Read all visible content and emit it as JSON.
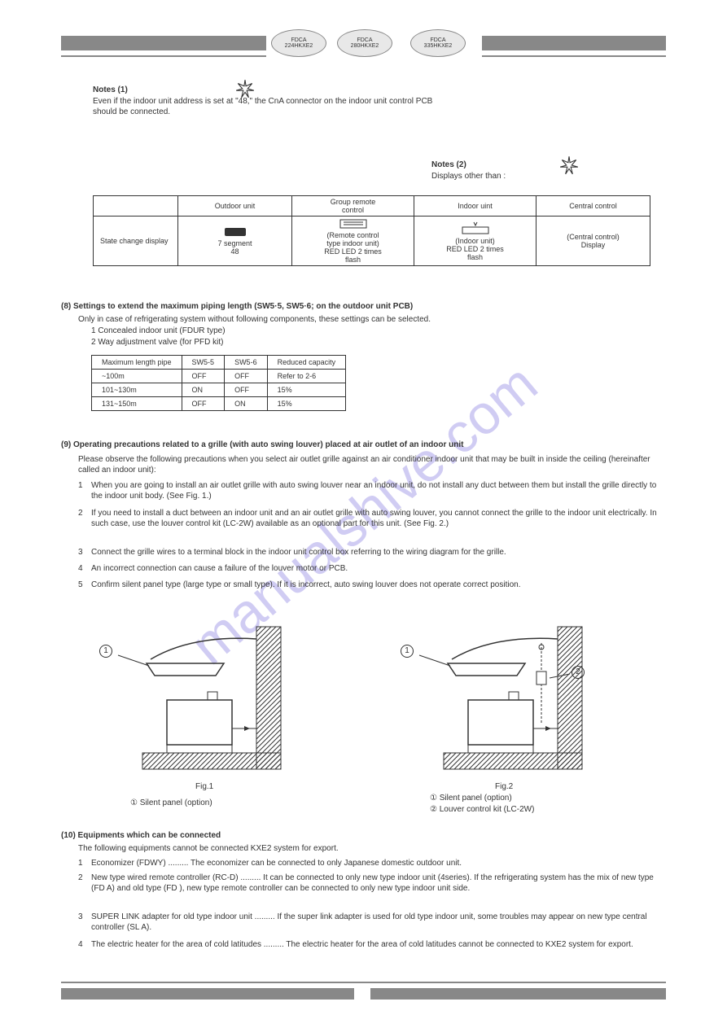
{
  "header": {
    "models": {
      "model1": "FDCA\n224HKXE2",
      "model2": "FDCA\n280HKXE2",
      "model3": "FDCA\n335HKXE2"
    }
  },
  "watermark": "manualshive.com",
  "notes": {
    "note1_title": "Notes (1)",
    "note1_body": "Even if the indoor unit address is set at \"48,\" the CnA connector on the indoor unit control PCB should be connected.",
    "notes2_title": "Notes (2)",
    "notes2_body": "Displays other than :"
  },
  "deviceTable": {
    "col_outdoor": "Outdoor unit",
    "col_group": "Group remote\ncontrol",
    "col_indoor": "Indoor uint",
    "col_central": "Central control",
    "row_label": "State change display",
    "row_48": "7 segment\n48",
    "row_remote": "(Remote control\ntype indoor unit)\nRED LED 2 times\nflash",
    "row_indoor": "(Indoor unit)\nRED LED 2 times\nflash",
    "row_central": "(Central control)\nDisplay"
  },
  "settings": {
    "title": "(8) Settings to extend the maximum piping length (SW5·5, SW5·6; on the outdoor unit PCB)",
    "intro": "Only in case of refrigerating system without following components, these settings can be selected.",
    "item1": "1 Concealed indoor unit (FDUR type)",
    "item2": "2 Way adjustment valve (for PFD kit)",
    "table_header_length": "Maximum length pipe",
    "table_reduced": "Reduced capacity",
    "row1_len": "~100m",
    "row1_sw55": "OFF",
    "row1_sw56": "OFF",
    "row1_cap": "Refer to 2-6",
    "row2_len": "101~130m",
    "row2_sw55": "ON",
    "row2_sw56": "OFF",
    "row2_cap": "15%",
    "row3_len": "131~150m",
    "row3_sw55": "OFF",
    "row3_sw56": "ON",
    "row3_cap": "15%"
  },
  "precautions": {
    "title": "(9) Operating precautions related to a grille (with auto swing louver) placed at air outlet of an indoor unit",
    "intro": "Please observe the following precautions when you select air outlet grille against an air conditioner indoor unit that may be built in inside the ceiling (hereinafter called an indoor unit):",
    "item1_label": "1",
    "item1_text": "When you are going to install an air outlet grille with auto swing louver near an indoor unit, do not install any duct between them but install the grille directly to the indoor unit body. (See Fig. 1.)",
    "item2_label": "2",
    "item2_text": "If you need to install a duct between an indoor unit and an air outlet grille with auto swing louver, you cannot connect the grille to the indoor unit electrically. In such case, use the louver control kit (LC-2W) available as an optional part for this unit. (See Fig. 2.)",
    "item3_label": "3",
    "item3_text": "Connect the grille wires to a terminal block in the indoor unit control box referring to the wiring diagram for the grille.",
    "item4_label": "4",
    "item4_text": "An incorrect connection can cause a failure of the louver motor or PCB.",
    "item5_label": "5",
    "item5_text": "Confirm silent panel type (large type or small type). If it is incorrect, auto swing louver does not operate correct position.",
    "fig1_caption": "Fig.1",
    "fig2_caption": "Fig.2",
    "fig_label1": "① Silent panel (option)",
    "fig_label2": "② Louver control kit (LC-2W)"
  },
  "equipment": {
    "title": "(10) Equipments which can be connected",
    "intro": "The following equipments cannot be connected KXE2 system for export.",
    "item1_label": "1",
    "item1_text": "Economizer (FDWY) ......... The economizer can be connected to only Japanese domestic outdoor unit.",
    "item2_label": "2",
    "item2_text": "New type wired remote controller (RC-D) ......... It can be connected to only new type indoor unit (4series). If the refrigerating system has the mix of new type (FD  A) and old type (FD  ), new type remote controller can be connected to only new type indoor unit side.",
    "item3_label": "3",
    "item3_text": "SUPER LINK adapter for old type indoor unit ......... If the super link adapter is used for old type indoor unit, some troubles may appear on new type central controller (SL A).",
    "item4_label": "4",
    "item4_text": "The electric heater for the area of cold latitudes ......... The electric heater for the area of cold latitudes cannot be connected to KXE2 system for export."
  },
  "colors": {
    "bar": "#888888",
    "text": "#333333",
    "ellipse_fill": "#e8e8e8",
    "watermark": "rgba(120,110,220,0.35)"
  }
}
